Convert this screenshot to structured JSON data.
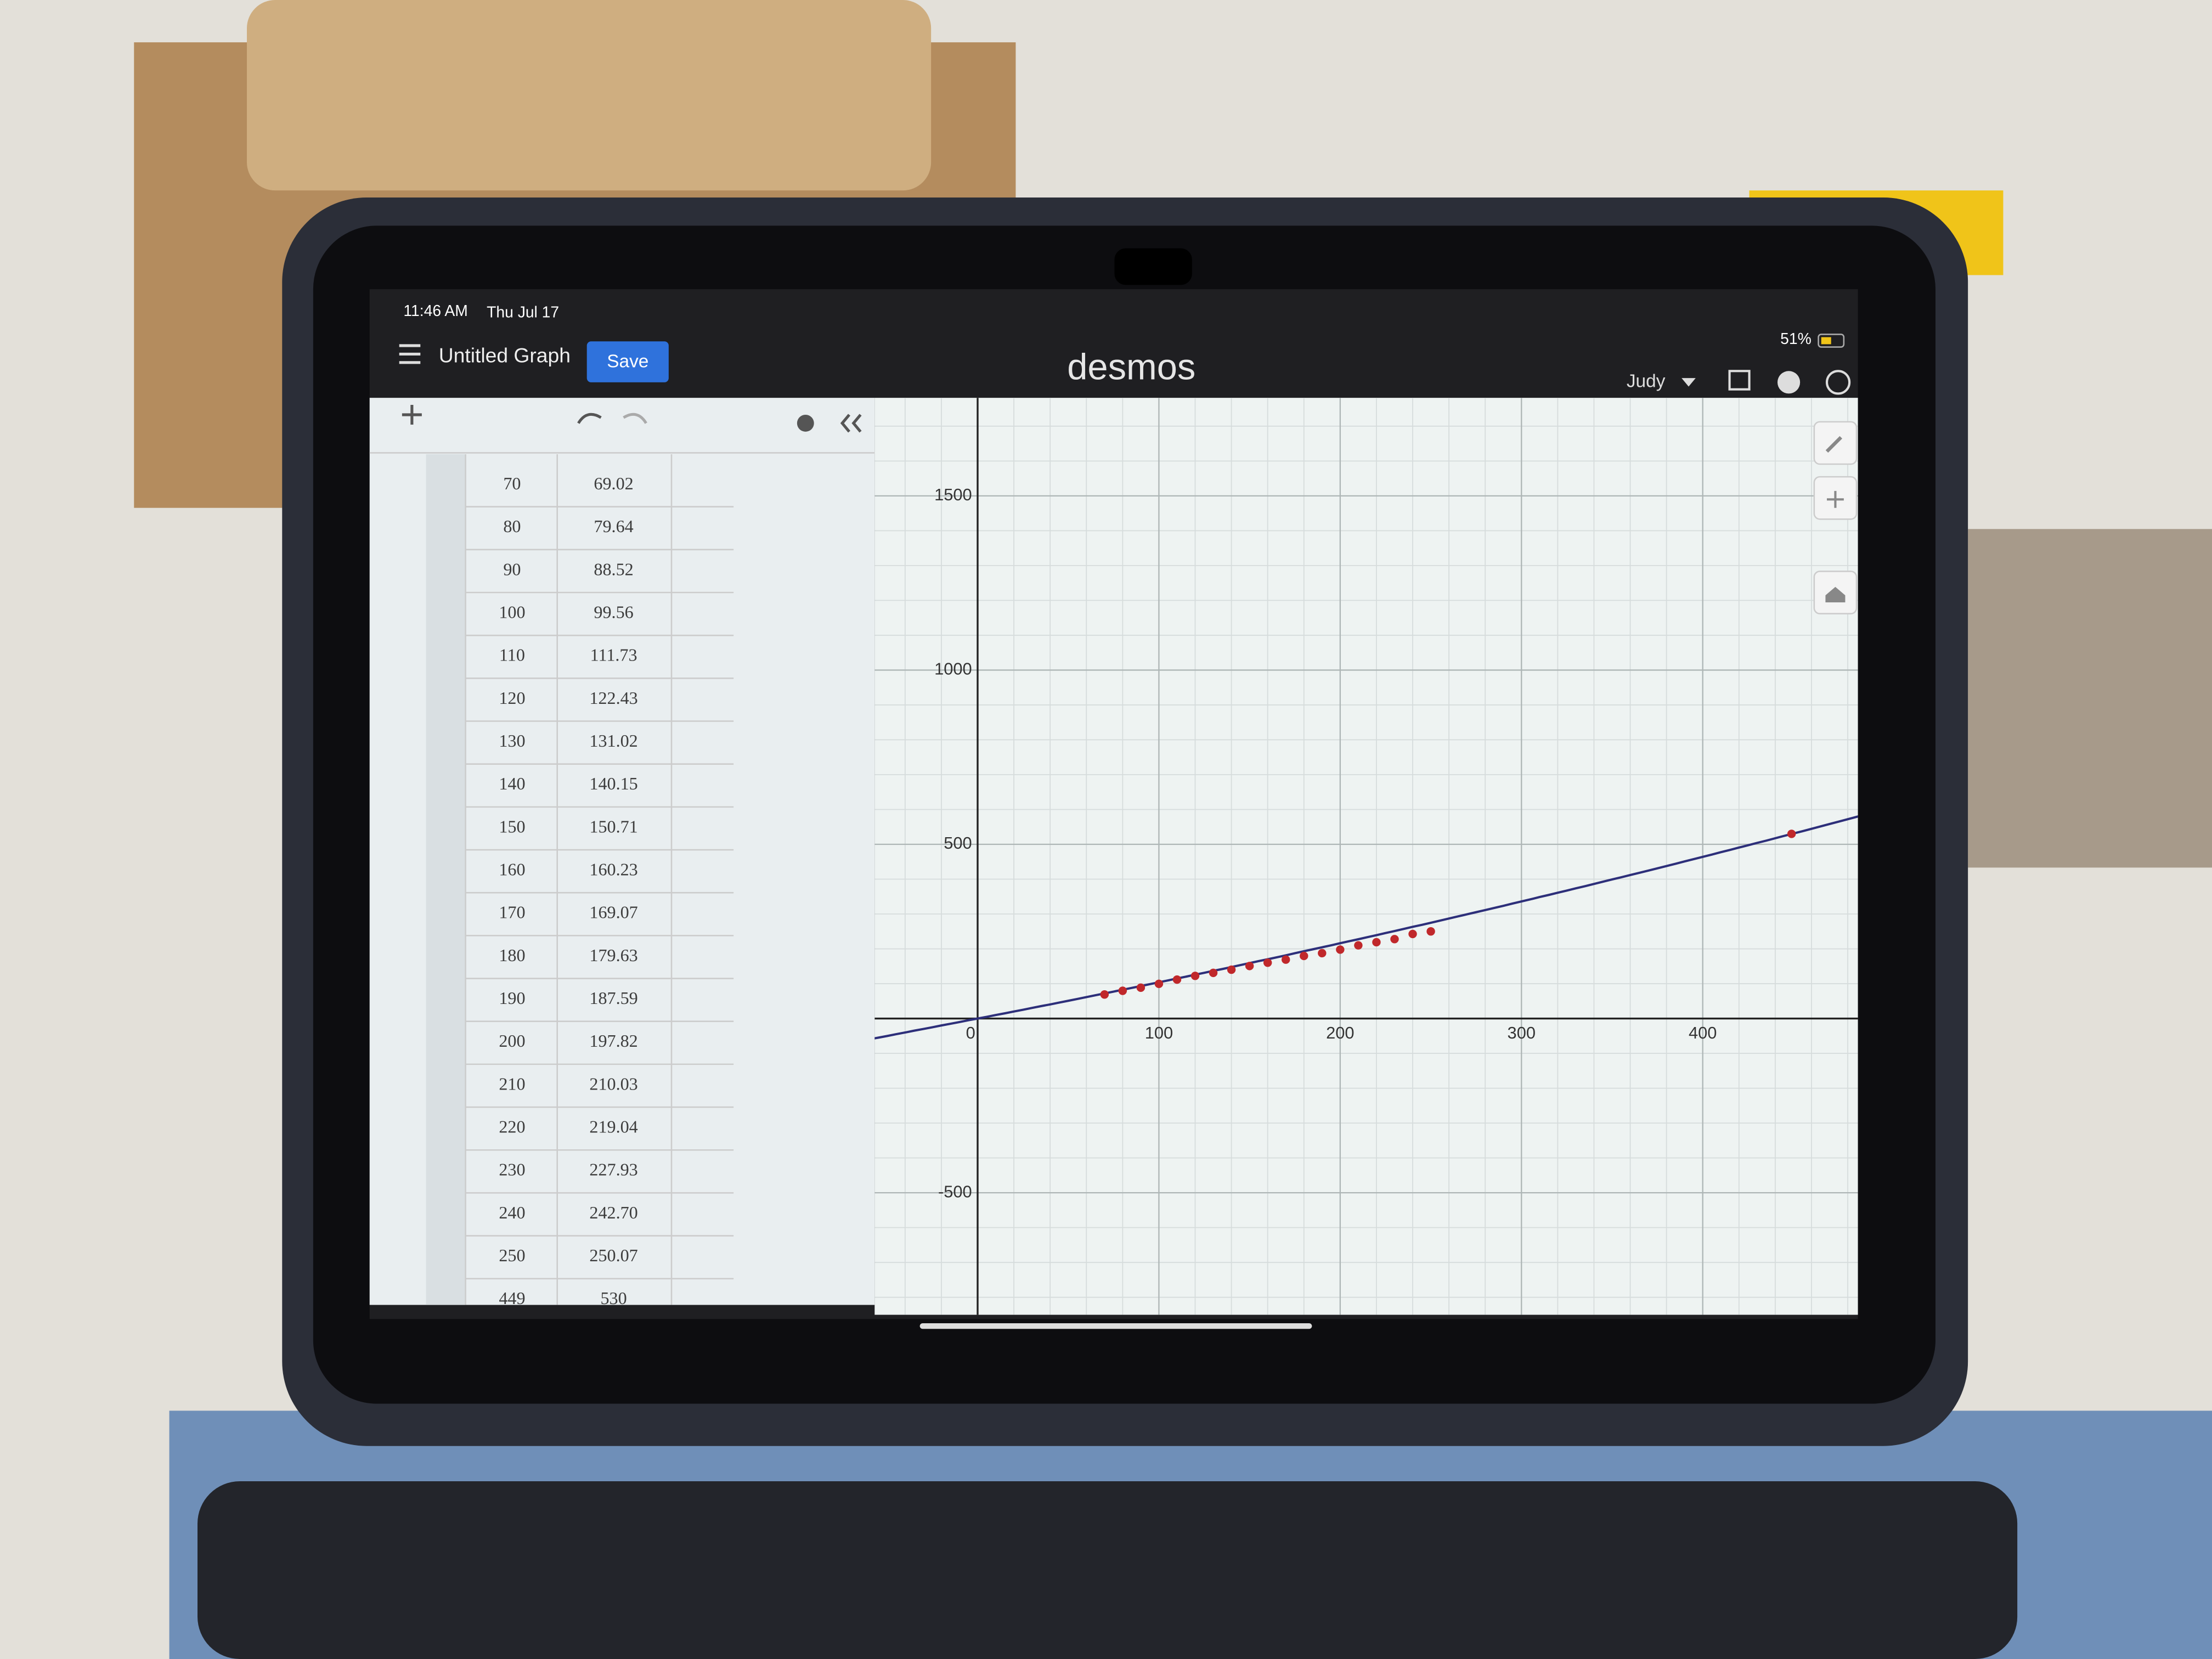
{
  "status_bar": {
    "time": "11:46 AM",
    "date": "Thu Jul 17",
    "battery": "51%"
  },
  "header": {
    "title": "Untitled Graph",
    "save_button": "Save",
    "logo": "desmos",
    "user": "Judy"
  },
  "table": {
    "rows": [
      [
        "70",
        "69.02"
      ],
      [
        "80",
        "79.64"
      ],
      [
        "90",
        "88.52"
      ],
      [
        "100",
        "99.56"
      ],
      [
        "110",
        "111.73"
      ],
      [
        "120",
        "122.43"
      ],
      [
        "130",
        "131.02"
      ],
      [
        "140",
        "140.15"
      ],
      [
        "150",
        "150.71"
      ],
      [
        "160",
        "160.23"
      ],
      [
        "170",
        "169.07"
      ],
      [
        "180",
        "179.63"
      ],
      [
        "190",
        "187.59"
      ],
      [
        "200",
        "197.82"
      ],
      [
        "210",
        "210.03"
      ],
      [
        "220",
        "219.04"
      ],
      [
        "230",
        "227.93"
      ],
      [
        "240",
        "242.70"
      ],
      [
        "250",
        "250.07"
      ],
      [
        "449",
        "530"
      ]
    ]
  },
  "graph": {
    "xticks": [
      0,
      100,
      200,
      300,
      400
    ],
    "yticks": [
      1500,
      1000,
      500,
      -500
    ],
    "grid": true,
    "point_color": "#c0282b",
    "curve_color": "#2d2f7a"
  }
}
